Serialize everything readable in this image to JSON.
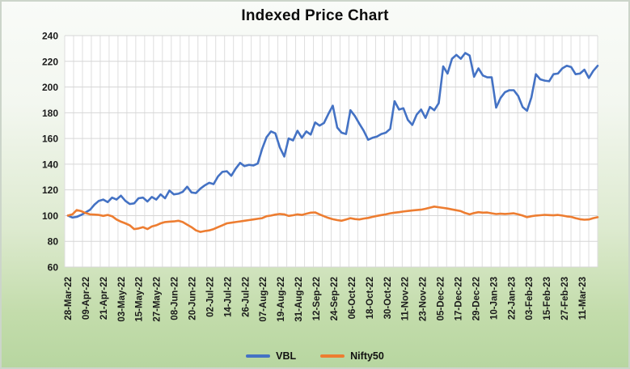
{
  "chart_data": {
    "type": "line",
    "title": "Indexed Price Chart",
    "ylim": [
      60,
      240
    ],
    "ytick_step": 20,
    "grid": true,
    "legend_position": "bottom",
    "x_tick_labels": [
      "28-Mar-22",
      "09-Apr-22",
      "21-Apr-22",
      "03-May-22",
      "15-May-22",
      "27-May-22",
      "08-Jun-22",
      "20-Jun-22",
      "02-Jul-22",
      "14-Jul-22",
      "26-Jul-22",
      "07-Aug-22",
      "19-Aug-22",
      "31-Aug-22",
      "12-Sep-22",
      "24-Sep-22",
      "06-Oct-22",
      "18-Oct-22",
      "30-Oct-22",
      "11-Nov-22",
      "23-Nov-22",
      "05-Dec-22",
      "17-Dec-22",
      "29-Dec-22",
      "10-Jan-23",
      "22-Jan-23",
      "03-Feb-23",
      "15-Feb-23",
      "27-Feb-23",
      "11-Mar-23"
    ],
    "series": [
      {
        "name": "VBL",
        "color": "#4472c4",
        "values": [
          100,
          98.5,
          99,
          100.5,
          102.5,
          104.5,
          108.5,
          111.5,
          112.5,
          110.5,
          114,
          112.5,
          115.5,
          111.5,
          109,
          109.5,
          113.5,
          114,
          111,
          114.5,
          112.5,
          116.5,
          113.5,
          119.5,
          116.5,
          117,
          118.5,
          122.5,
          118,
          117.5,
          121,
          123.5,
          125.5,
          124.5,
          130.5,
          134,
          134.5,
          131,
          136.5,
          141,
          138.5,
          139.5,
          139,
          140.5,
          152,
          161,
          165.5,
          164,
          153,
          146,
          160,
          158.5,
          166,
          160.5,
          165.5,
          163,
          172.5,
          170,
          172,
          179,
          185.5,
          168.5,
          164.5,
          163.5,
          182,
          177.5,
          171.5,
          166,
          159,
          160.5,
          161.5,
          163.5,
          164.5,
          167.5,
          189,
          182.5,
          183.5,
          174.5,
          170.5,
          178.5,
          182.5,
          176,
          184.5,
          182,
          187.5,
          216,
          210.5,
          222,
          225,
          222,
          226.5,
          224.5,
          208,
          214.5,
          209,
          207.5,
          207.5,
          184,
          191.5,
          196,
          197.5,
          197.5,
          193,
          184.5,
          181.5,
          192,
          210,
          206,
          205,
          204.5,
          210,
          210.5,
          214.5,
          216.5,
          215.5,
          210,
          210.5,
          213.5,
          207,
          212.5,
          216.5
        ]
      },
      {
        "name": "Nifty50",
        "color": "#ed7d31",
        "values": [
          100,
          101,
          104.3,
          103.5,
          102,
          101,
          100.8,
          100.5,
          99.8,
          100.5,
          99.5,
          97,
          95.3,
          94,
          92.5,
          89.5,
          90,
          91,
          89.5,
          91.5,
          92.5,
          94,
          95,
          95.3,
          95.5,
          96,
          95,
          93,
          91,
          88.5,
          87.3,
          88,
          88.5,
          89.5,
          91,
          92.5,
          94,
          94.5,
          95,
          95.5,
          96,
          96.5,
          97,
          97.5,
          98,
          99.5,
          100,
          100.8,
          101.3,
          101,
          99.8,
          100.3,
          101,
          100.5,
          101.5,
          102.3,
          102.5,
          101,
          99.5,
          98.2,
          97.2,
          96.5,
          96,
          97,
          98,
          97.3,
          97,
          97.7,
          98.2,
          99,
          99.8,
          100.4,
          101,
          101.8,
          102.3,
          102.7,
          103.2,
          103.6,
          104,
          104.3,
          104.6,
          105.3,
          106.2,
          107,
          106.5,
          106,
          105.5,
          104.8,
          104.2,
          103.5,
          102,
          101,
          102,
          102.7,
          102.3,
          102.4,
          101.8,
          101.2,
          101.5,
          101.3,
          101.5,
          101.8,
          101,
          100,
          98.8,
          99.5,
          100,
          100.3,
          100.6,
          100.4,
          100.2,
          100.5,
          100,
          99.4,
          99,
          98,
          97.2,
          96.8,
          97,
          98,
          98.8
        ]
      }
    ]
  }
}
